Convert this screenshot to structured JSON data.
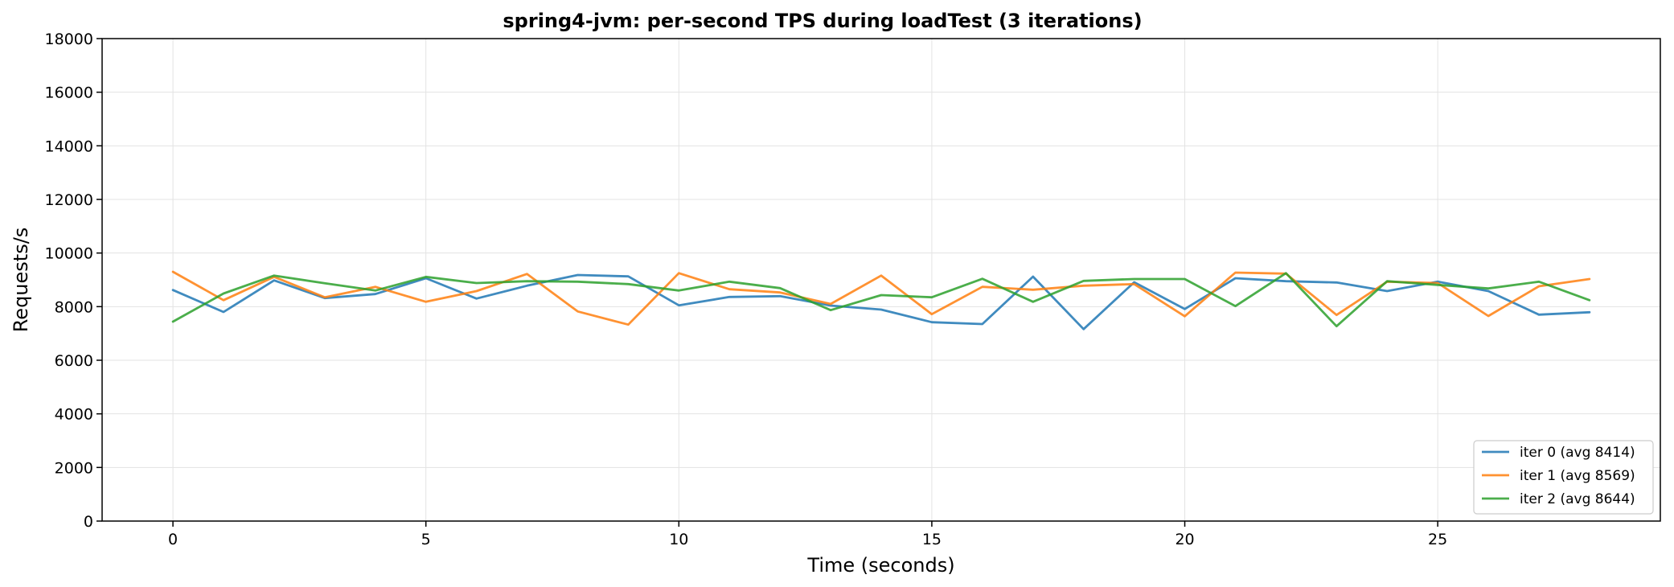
{
  "chart_data": {
    "type": "line",
    "title": "spring4-jvm: per-second TPS during loadTest (3 iterations)",
    "xlabel": "Time (seconds)",
    "ylabel": "Requests/s",
    "xlim": [
      -1.4,
      29.4
    ],
    "ylim": [
      0,
      18000
    ],
    "xticks": [
      0,
      5,
      10,
      15,
      20,
      25
    ],
    "yticks": [
      0,
      2000,
      4000,
      6000,
      8000,
      10000,
      12000,
      14000,
      16000,
      18000
    ],
    "grid": true,
    "legend_position": "lower-right",
    "x": [
      0,
      1,
      2,
      3,
      4,
      5,
      6,
      7,
      8,
      9,
      10,
      11,
      12,
      13,
      14,
      15,
      16,
      17,
      18,
      19,
      20,
      21,
      22,
      23,
      24,
      25,
      26,
      27,
      28
    ],
    "series": [
      {
        "name": "iter 0 (avg 8414)",
        "color": "#1f77b4",
        "values": [
          8620,
          7800,
          8980,
          8320,
          8470,
          9060,
          8300,
          8780,
          9180,
          9130,
          8050,
          8360,
          8390,
          8040,
          7890,
          7420,
          7350,
          9120,
          7160,
          8910,
          7910,
          9060,
          8950,
          8900,
          8580,
          8930,
          8580,
          7700,
          7790
        ]
      },
      {
        "name": "iter 1 (avg 8569)",
        "color": "#ff7f0e",
        "values": [
          9300,
          8240,
          9110,
          8350,
          8740,
          8180,
          8580,
          9220,
          7820,
          7330,
          9250,
          8650,
          8530,
          8100,
          9160,
          7720,
          8740,
          8630,
          8780,
          8840,
          7640,
          9270,
          9230,
          7690,
          8930,
          8880,
          7650,
          8760,
          9030
        ]
      },
      {
        "name": "iter 2 (avg 8644)",
        "color": "#2ca02c",
        "values": [
          7440,
          8490,
          9160,
          8870,
          8600,
          9110,
          8880,
          8950,
          8930,
          8840,
          8600,
          8930,
          8690,
          7870,
          8430,
          8350,
          9040,
          8180,
          8960,
          9030,
          9030,
          8020,
          9250,
          7270,
          8950,
          8810,
          8680,
          8930,
          8240
        ]
      }
    ]
  }
}
